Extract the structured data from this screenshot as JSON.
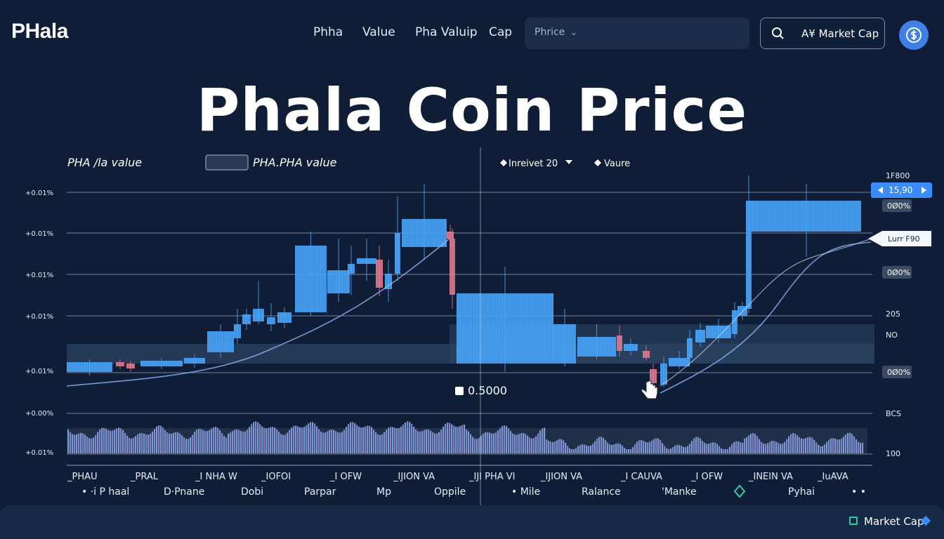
{
  "header": {
    "logo": "PHala",
    "nav": [
      "Phha",
      "Value",
      "Pha Valuip",
      "Cap"
    ],
    "select_label": "Phrice",
    "market_cap_button": "A¥ Market Cap"
  },
  "hero_title": "Phala Coin Price",
  "chart": {
    "title_left": "PHA /la value",
    "title_mid": "PHA.PHA value",
    "interval_label": "Inreivet 20",
    "value_label": "Vaure",
    "y_labels_left": [
      "+0.01%",
      "+0.01%",
      "+0.01%",
      "+0.01%",
      "+0.01%",
      "+0.00%",
      "+0.01%"
    ],
    "right_labels": [
      "1F800",
      "15,90",
      "0Ø0%",
      "Lurr F90",
      "0Ø0%",
      "205",
      "NO",
      "0Ø0%",
      "BCS",
      "100"
    ],
    "x_labels": [
      "_PHAU",
      "_PRAL",
      "_I NHA W",
      "_IOFOI",
      "_I OFW",
      "_IJION VA",
      "_IJI PHA VI",
      "_IJION VA",
      "_I CAUVA",
      "_I OFW",
      "_INEIN VA",
      "_IuAVA"
    ],
    "bottom_labels": [
      "• ·i P haal",
      "D·Pnane",
      "Dobi",
      "Parpar",
      "Mp",
      "Oppile",
      "• Mile",
      "Ralance",
      "'Manke",
      "Pyhai",
      "• •"
    ],
    "price_marker": "0.5000",
    "colors": {
      "up": "#4aa8ff",
      "down": "#f07887",
      "accent": "#3b8cff",
      "background": "#0f1e36"
    }
  },
  "footer": {
    "market_cap": "Market Cap"
  }
}
